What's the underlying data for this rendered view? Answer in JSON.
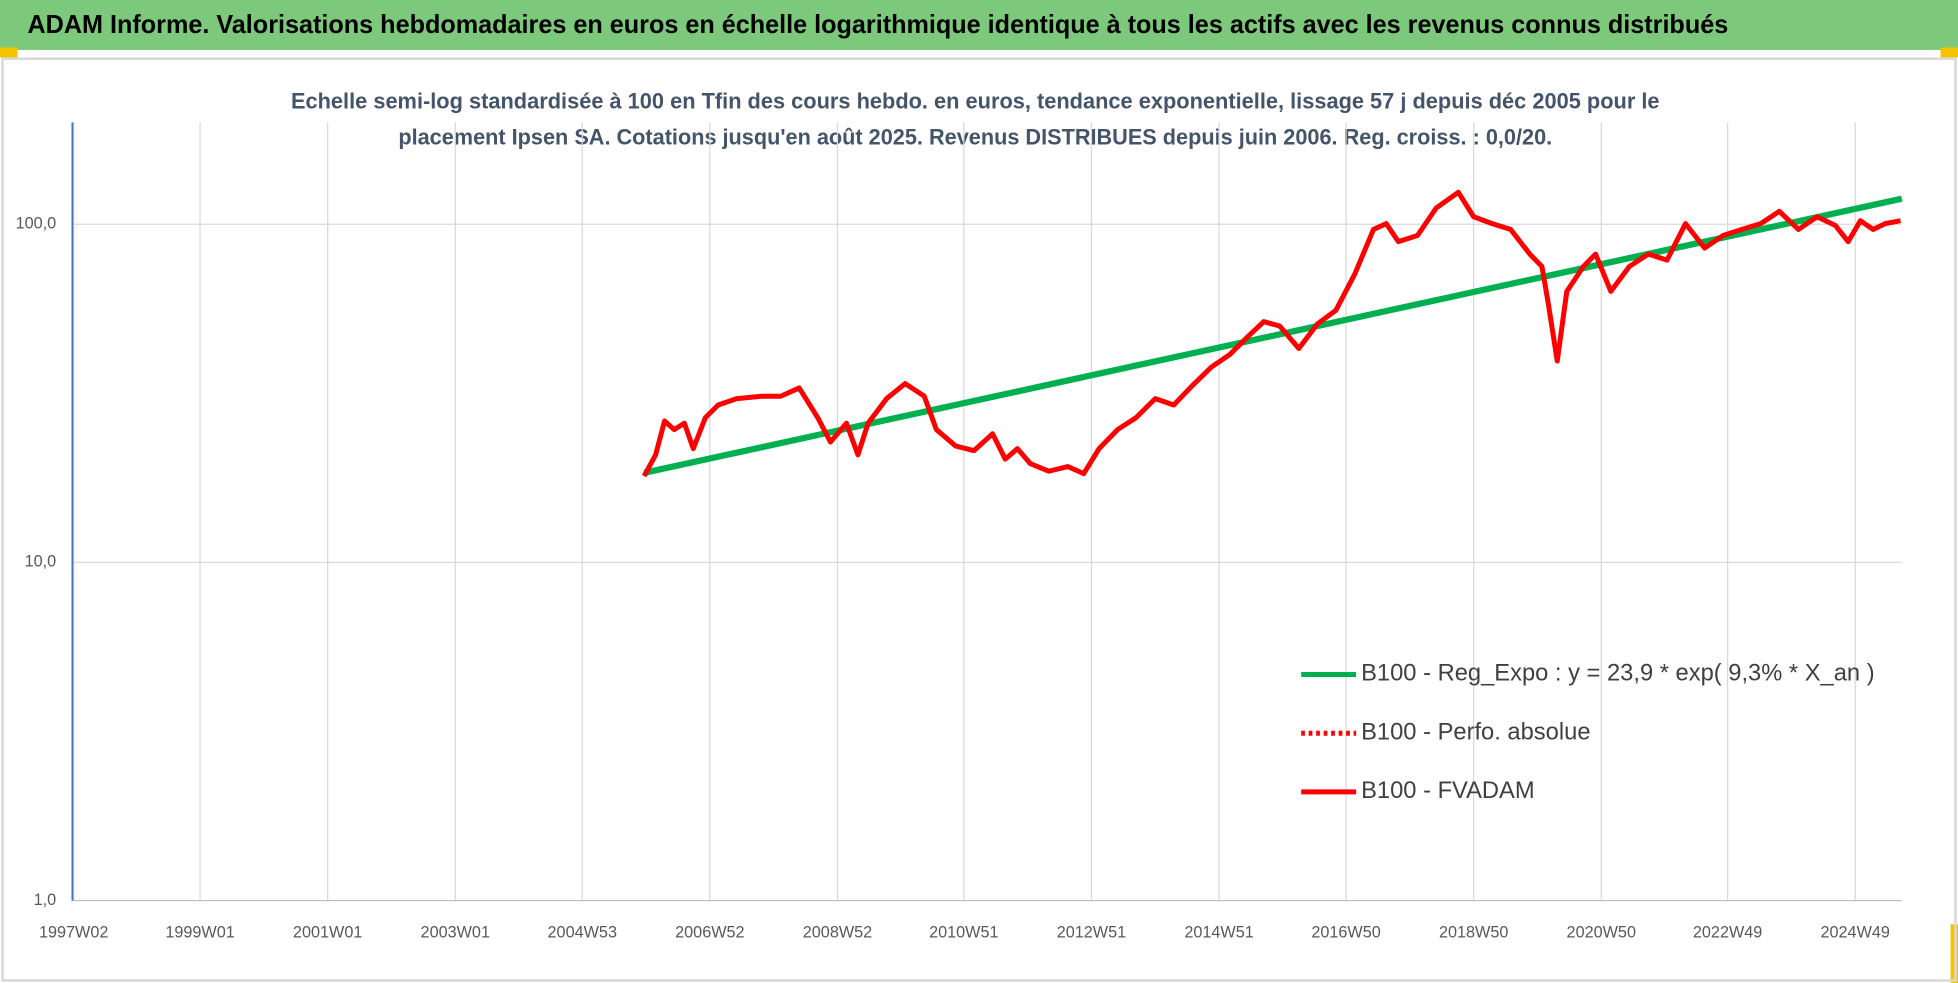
{
  "chart_data": {
    "type": "line",
    "title": "ADAM Informe. Valorisations hebdomadaires en euros en échelle logarithmique identique à tous les actifs avec les revenus connus distribués",
    "subtitle": [
      "Echelle semi-log standardisée à 100 en Tfin des cours hebdo. en euros, tendance exponentielle, lissage 57 j depuis déc 2005 pour le",
      "placement Ipsen SA. Cotations jusqu'en août 2025. Revenus DISTRIBUES depuis juin 2006. Reg. croiss. : 0,0/20."
    ],
    "log_scale_y": true,
    "grid": true,
    "legend_position": "right",
    "xlim": [
      1997,
      2025.67
    ],
    "xticks": [
      {
        "value": 1997.02,
        "label": "1997W02"
      },
      {
        "value": 1999.0,
        "label": "1999W01"
      },
      {
        "value": 2001.0,
        "label": "2001W01"
      },
      {
        "value": 2003.0,
        "label": "2003W01"
      },
      {
        "value": 2004.99,
        "label": "2004W53"
      },
      {
        "value": 2006.99,
        "label": "2006W52"
      },
      {
        "value": 2008.99,
        "label": "2008W52"
      },
      {
        "value": 2010.97,
        "label": "2010W51"
      },
      {
        "value": 2012.97,
        "label": "2012W51"
      },
      {
        "value": 2014.97,
        "label": "2014W51"
      },
      {
        "value": 2016.96,
        "label": "2016W50"
      },
      {
        "value": 2018.96,
        "label": "2018W50"
      },
      {
        "value": 2020.96,
        "label": "2020W50"
      },
      {
        "value": 2022.94,
        "label": "2022W49"
      },
      {
        "value": 2024.94,
        "label": "2024W49"
      }
    ],
    "ylim": [
      1,
      200
    ],
    "yticks": [
      {
        "value": 1,
        "label": "1,0"
      },
      {
        "value": 10,
        "label": "10,0"
      },
      {
        "value": 100,
        "label": "100,0"
      }
    ],
    "series": [
      {
        "name": "B100 - Reg_Expo : y = 23,9 * exp( 9,3% *  X_an )",
        "color": "#00b050",
        "style": "solid",
        "x": [
          2005.96,
          2025.67
        ],
        "values": [
          18.4,
          119
        ]
      },
      {
        "name": "B100 - Perfo. absolue",
        "color": "#ff0000",
        "style": "dotted",
        "x": [],
        "values": []
      },
      {
        "name": "B100 - FVADAM",
        "color": "#ff0000",
        "style": "solid",
        "x": [
          2005.96,
          2006.14,
          2006.28,
          2006.43,
          2006.59,
          2006.73,
          2006.92,
          2007.12,
          2007.41,
          2007.8,
          2008.1,
          2008.39,
          2008.68,
          2008.88,
          2009.13,
          2009.31,
          2009.47,
          2009.76,
          2010.05,
          2010.35,
          2010.54,
          2010.84,
          2011.13,
          2011.42,
          2011.62,
          2011.81,
          2012.01,
          2012.3,
          2012.6,
          2012.85,
          2013.09,
          2013.38,
          2013.67,
          2013.97,
          2014.26,
          2014.55,
          2014.85,
          2015.14,
          2015.43,
          2015.67,
          2015.92,
          2016.22,
          2016.51,
          2016.8,
          2017.1,
          2017.39,
          2017.59,
          2017.78,
          2018.08,
          2018.37,
          2018.72,
          2018.96,
          2019.25,
          2019.54,
          2019.84,
          2020.03,
          2020.13,
          2020.27,
          2020.42,
          2020.68,
          2020.87,
          2021.11,
          2021.4,
          2021.7,
          2021.99,
          2022.28,
          2022.58,
          2022.87,
          2023.16,
          2023.46,
          2023.75,
          2024.05,
          2024.34,
          2024.63,
          2024.83,
          2025.02,
          2025.22,
          2025.41,
          2025.65
        ],
        "values": [
          18.0,
          20.8,
          26.2,
          24.7,
          25.8,
          21.7,
          26.8,
          29.2,
          30.5,
          31.0,
          31.0,
          32.8,
          26.8,
          22.7,
          25.8,
          20.8,
          25.8,
          30.5,
          33.8,
          31.0,
          24.7,
          22.1,
          21.4,
          24.0,
          20.2,
          21.7,
          19.6,
          18.6,
          19.2,
          18.3,
          21.7,
          24.7,
          26.8,
          30.5,
          29.2,
          33.3,
          37.8,
          41.2,
          46.7,
          51.5,
          50.0,
          42.9,
          50.7,
          55.6,
          71.4,
          96.5,
          100.4,
          88.8,
          92.6,
          111.5,
          124.3,
          105.2,
          100.4,
          96.5,
          81.6,
          75.0,
          58.2,
          39.4,
          63.3,
          75.0,
          81.6,
          63.3,
          75.0,
          81.6,
          78.3,
          100.4,
          85.0,
          92.6,
          96.5,
          100.4,
          109.2,
          96.5,
          105.2,
          99.1,
          88.8,
          102.4,
          96.5,
          100.4,
          102.4
        ]
      }
    ]
  }
}
